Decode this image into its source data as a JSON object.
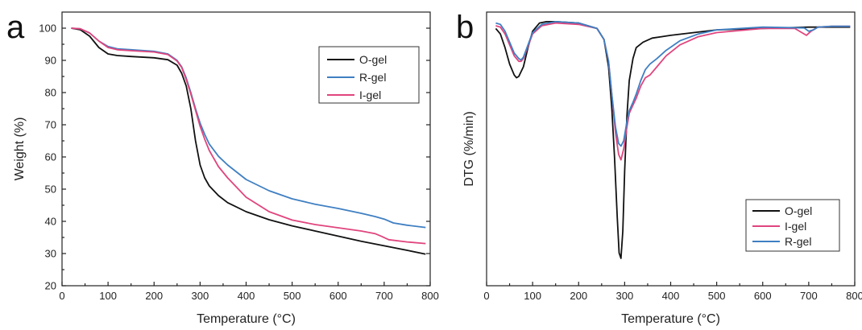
{
  "chart_data": [
    {
      "type": "line",
      "panel_letter": "a",
      "xlabel": "Temperature (°C)",
      "ylabel": "Weight (%)",
      "xlim": [
        0,
        800
      ],
      "ylim": [
        20,
        105
      ],
      "x_ticks": [
        0,
        100,
        200,
        300,
        400,
        500,
        600,
        700,
        800
      ],
      "y_ticks": [
        20,
        30,
        40,
        50,
        60,
        70,
        80,
        90,
        100
      ],
      "y_tick_labels": [
        "20",
        "30",
        "40",
        "50",
        "60",
        "70",
        "80",
        "90",
        "100"
      ],
      "grid": false,
      "legend_position": "top-right",
      "series": [
        {
          "name": "O-gel",
          "color": "#111111",
          "x": [
            20,
            40,
            60,
            80,
            100,
            120,
            150,
            200,
            230,
            250,
            260,
            270,
            280,
            290,
            300,
            310,
            320,
            340,
            360,
            400,
            450,
            500,
            550,
            600,
            650,
            700,
            750,
            790
          ],
          "y": [
            100,
            99.5,
            97.5,
            94,
            92,
            91.5,
            91.2,
            90.8,
            90.2,
            88.5,
            86,
            82,
            75,
            65,
            57.5,
            53.5,
            51,
            48,
            45.8,
            43,
            40.5,
            38.6,
            37,
            35.4,
            33.8,
            32.4,
            31,
            29.8
          ]
        },
        {
          "name": "R-gel",
          "color": "#3f7fc2",
          "x": [
            20,
            40,
            60,
            80,
            100,
            120,
            150,
            200,
            230,
            250,
            260,
            270,
            280,
            290,
            300,
            310,
            320,
            340,
            360,
            400,
            450,
            500,
            550,
            600,
            650,
            680,
            700,
            720,
            750,
            790
          ],
          "y": [
            100,
            99.8,
            98.5,
            96,
            94.3,
            93.6,
            93.3,
            92.8,
            92,
            90,
            88,
            84.5,
            80,
            75,
            70.5,
            67,
            64,
            60.2,
            57.5,
            53,
            49.5,
            47,
            45.3,
            44,
            42.5,
            41.5,
            40.7,
            39.5,
            38.8,
            38.1
          ]
        },
        {
          "name": "I-gel",
          "color": "#e0457e",
          "x": [
            20,
            40,
            60,
            80,
            100,
            120,
            150,
            200,
            230,
            250,
            260,
            270,
            280,
            290,
            300,
            310,
            320,
            340,
            360,
            400,
            450,
            500,
            550,
            600,
            650,
            680,
            695,
            710,
            750,
            790
          ],
          "y": [
            100,
            99.8,
            98.5,
            96,
            94,
            93.3,
            93,
            92.6,
            91.8,
            89.8,
            87.8,
            84,
            79.5,
            74.5,
            69.5,
            65.5,
            62,
            57,
            53.5,
            47.5,
            43,
            40.4,
            39,
            38,
            37,
            36.2,
            35.3,
            34.3,
            33.6,
            33.1
          ]
        }
      ]
    },
    {
      "type": "line",
      "panel_letter": "b",
      "xlabel": "Temperature (°C)",
      "ylabel": "DTG (%/min)",
      "xlim": [
        0,
        800
      ],
      "ylim": [
        0,
        1
      ],
      "x_ticks": [
        0,
        100,
        200,
        300,
        400,
        500,
        600,
        700,
        800
      ],
      "y_ticks_shown": false,
      "grid": false,
      "legend_position": "bottom-right",
      "series": [
        {
          "name": "O-gel",
          "color": "#111111",
          "x": [
            20,
            30,
            40,
            50,
            60,
            65,
            70,
            80,
            90,
            100,
            115,
            130,
            150,
            200,
            240,
            255,
            265,
            272,
            278,
            284,
            288,
            292,
            296,
            300,
            305,
            310,
            318,
            325,
            340,
            360,
            380,
            400,
            450,
            500,
            600,
            700,
            750,
            790
          ],
          "y": [
            0.94,
            0.92,
            0.87,
            0.81,
            0.77,
            0.76,
            0.765,
            0.8,
            0.87,
            0.93,
            0.96,
            0.965,
            0.965,
            0.96,
            0.94,
            0.9,
            0.8,
            0.65,
            0.47,
            0.25,
            0.12,
            0.1,
            0.2,
            0.42,
            0.62,
            0.75,
            0.83,
            0.87,
            0.89,
            0.905,
            0.91,
            0.915,
            0.925,
            0.935,
            0.94,
            0.945,
            0.945,
            0.945
          ]
        },
        {
          "name": "I-gel",
          "color": "#e0457e",
          "x": [
            20,
            30,
            40,
            50,
            60,
            70,
            75,
            80,
            90,
            100,
            120,
            150,
            200,
            240,
            255,
            265,
            272,
            280,
            287,
            292,
            298,
            305,
            310,
            318,
            325,
            335,
            345,
            355,
            370,
            390,
            420,
            460,
            500,
            600,
            670,
            685,
            695,
            705,
            720,
            750,
            790
          ],
          "y": [
            0.95,
            0.945,
            0.92,
            0.88,
            0.84,
            0.82,
            0.82,
            0.83,
            0.875,
            0.92,
            0.95,
            0.96,
            0.955,
            0.94,
            0.9,
            0.82,
            0.7,
            0.56,
            0.48,
            0.46,
            0.5,
            0.58,
            0.63,
            0.66,
            0.685,
            0.73,
            0.76,
            0.77,
            0.8,
            0.84,
            0.88,
            0.91,
            0.925,
            0.94,
            0.94,
            0.925,
            0.915,
            0.93,
            0.945,
            0.948,
            0.948
          ]
        },
        {
          "name": "R-gel",
          "color": "#3f7fc2",
          "x": [
            20,
            30,
            40,
            50,
            60,
            70,
            75,
            80,
            90,
            100,
            120,
            150,
            200,
            240,
            255,
            265,
            272,
            280,
            287,
            292,
            298,
            305,
            310,
            318,
            325,
            335,
            345,
            355,
            370,
            390,
            420,
            460,
            500,
            600,
            690,
            700,
            710,
            720,
            750,
            790
          ],
          "y": [
            0.96,
            0.955,
            0.93,
            0.89,
            0.85,
            0.83,
            0.825,
            0.835,
            0.88,
            0.925,
            0.955,
            0.965,
            0.96,
            0.94,
            0.9,
            0.82,
            0.7,
            0.58,
            0.52,
            0.51,
            0.53,
            0.6,
            0.64,
            0.67,
            0.7,
            0.75,
            0.79,
            0.81,
            0.83,
            0.86,
            0.895,
            0.92,
            0.935,
            0.945,
            0.942,
            0.93,
            0.935,
            0.945,
            0.948,
            0.948
          ]
        }
      ]
    }
  ]
}
